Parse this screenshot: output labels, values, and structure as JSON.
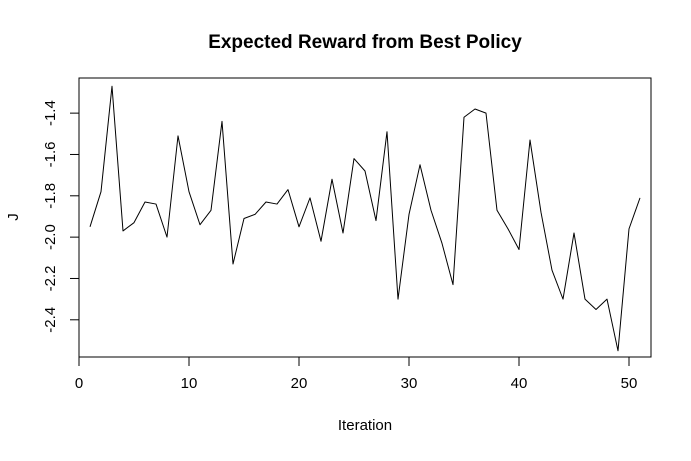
{
  "chart_data": {
    "type": "line",
    "title": "Expected Reward from Best Policy",
    "xlabel": "Iteration",
    "ylabel": "J",
    "xlim": [
      0,
      52
    ],
    "ylim": [
      -2.58,
      -1.23
    ],
    "xticks": [
      0,
      10,
      20,
      30,
      40,
      50
    ],
    "xtick_labels": [
      "0",
      "10",
      "20",
      "30",
      "40",
      "50"
    ],
    "yticks": [
      -1.4,
      -1.6,
      -1.8,
      -2.0,
      -2.2,
      -2.4
    ],
    "ytick_labels": [
      "-1.4",
      "-1.6",
      "-1.8",
      "-2.0",
      "-2.2",
      "-2.4"
    ],
    "grid": false,
    "box": true,
    "line_color": "#000000",
    "series": [
      {
        "x": [
          1,
          2,
          3,
          4,
          5,
          6,
          7,
          8,
          9,
          10,
          11,
          12,
          13,
          14,
          15,
          16,
          17,
          18,
          19,
          20,
          21,
          22,
          23,
          24,
          25,
          26,
          27,
          28,
          29,
          30,
          31,
          32,
          33,
          34,
          35,
          36,
          37,
          38,
          39,
          40,
          41,
          42,
          43,
          44,
          45,
          46,
          47,
          48,
          49,
          50,
          51
        ],
        "values": [
          -1.95,
          -1.78,
          -1.27,
          -1.97,
          -1.93,
          -1.83,
          -1.84,
          -2.0,
          -1.51,
          -1.78,
          -1.94,
          -1.87,
          -1.44,
          -2.13,
          -1.91,
          -1.89,
          -1.83,
          -1.84,
          -1.77,
          -1.95,
          -1.81,
          -2.02,
          -1.72,
          -1.98,
          -1.62,
          -1.68,
          -1.92,
          -1.49,
          -2.3,
          -1.89,
          -1.65,
          -1.87,
          -2.03,
          -2.23,
          -1.42,
          -1.38,
          -1.4,
          -1.87,
          -1.96,
          -2.06,
          -1.53,
          -1.88,
          -2.16,
          -2.3,
          -1.98,
          -2.3,
          -2.35,
          -2.3,
          -2.55,
          -1.96,
          -1.81
        ]
      }
    ]
  }
}
